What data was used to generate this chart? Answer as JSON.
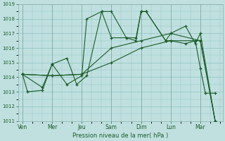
{
  "background_color": "#c0e0e0",
  "grid_color": "#90c0c0",
  "line_color": "#1a5c28",
  "xlabel": "Pression niveau de la mer( hPa )",
  "ylim": [
    1011,
    1019
  ],
  "yticks": [
    1011,
    1012,
    1013,
    1014,
    1015,
    1016,
    1017,
    1018,
    1019
  ],
  "day_labels": [
    "Ven",
    "Mer",
    "Jeu",
    "Sam",
    "Dim",
    "Lun",
    "Mar"
  ],
  "day_positions": [
    0,
    1,
    2,
    3,
    4,
    5,
    6
  ],
  "line1_x": [
    0.0,
    0.17,
    0.67,
    1.0,
    1.5,
    1.83,
    2.17,
    2.67,
    3.0,
    3.5,
    3.83,
    4.0,
    4.17,
    4.83,
    5.0,
    5.5,
    5.83,
    6.0,
    6.5
  ],
  "line1_y": [
    1014.2,
    1013.0,
    1013.1,
    1014.9,
    1015.3,
    1013.5,
    1014.1,
    1018.5,
    1018.5,
    1016.7,
    1016.7,
    1018.5,
    1018.5,
    1016.5,
    1017.0,
    1017.5,
    1016.3,
    1017.0,
    1011.0
  ],
  "line2_x": [
    0.0,
    0.67,
    1.0,
    1.5,
    2.0,
    2.17,
    2.67,
    3.0,
    3.5,
    3.83,
    4.0,
    4.17,
    4.83,
    5.0,
    5.5,
    5.83,
    6.0,
    6.17,
    6.5
  ],
  "line2_y": [
    1014.2,
    1013.3,
    1014.9,
    1013.5,
    1014.1,
    1018.0,
    1018.5,
    1016.7,
    1016.7,
    1016.5,
    1018.5,
    1018.5,
    1016.5,
    1016.5,
    1016.3,
    1016.5,
    1014.6,
    1012.9,
    1012.9
  ],
  "line3_x": [
    0.0,
    1.0,
    2.0,
    3.0,
    4.0,
    5.0,
    6.0,
    6.5
  ],
  "line3_y": [
    1014.2,
    1014.1,
    1014.2,
    1016.0,
    1016.5,
    1017.0,
    1016.5,
    1011.0
  ],
  "line4_x": [
    0.0,
    1.0,
    2.0,
    3.0,
    4.0,
    5.0,
    6.0,
    6.5
  ],
  "line4_y": [
    1014.2,
    1014.1,
    1014.2,
    1015.0,
    1016.0,
    1016.5,
    1016.5,
    1011.0
  ],
  "figsize": [
    3.2,
    2.0
  ],
  "dpi": 100
}
